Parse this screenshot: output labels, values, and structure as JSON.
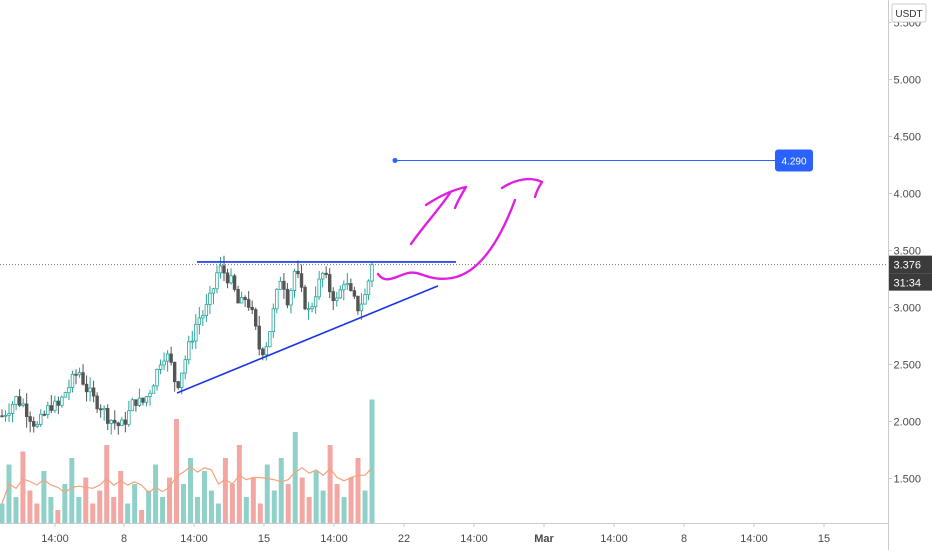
{
  "chart_data": {
    "type": "candlestick",
    "currency": "USDT",
    "y_range": [
      1.15,
      5.65
    ],
    "y_ticks": [
      "1.500",
      "2.000",
      "2.500",
      "3.000",
      "3.500",
      "4.000",
      "4.500",
      "5.000",
      "5.500"
    ],
    "x_ticks": [
      "14:00",
      "8",
      "14:00",
      "15",
      "14:00",
      "22",
      "14:00",
      "Mar",
      "14:00",
      "8",
      "14:00",
      "15"
    ],
    "last_price": "3.376",
    "countdown": "31:34",
    "target_price": 4.29,
    "target_label": "4.290",
    "resistance_level": 3.4,
    "support_trendline": [
      {
        "price": 2.25
      },
      {
        "price": 3.19
      }
    ],
    "price_path": [
      2.05,
      2.12,
      2.2,
      2.15,
      2.05,
      1.95,
      2.05,
      2.15,
      2.12,
      2.25,
      2.35,
      2.45,
      2.3,
      2.2,
      2.15,
      2.05,
      2.0,
      1.95,
      2.05,
      2.2,
      2.15,
      2.25,
      2.4,
      2.6,
      2.55,
      2.3,
      2.5,
      2.7,
      2.9,
      2.95,
      3.1,
      3.35,
      3.3,
      3.2,
      3.0,
      3.1,
      2.9,
      2.6,
      2.7,
      3.0,
      3.3,
      3.05,
      3.35,
      3.1,
      2.95,
      3.15,
      3.3,
      3.15,
      3.05,
      3.25,
      3.1,
      3.0,
      3.1,
      3.376
    ],
    "volume_path": [
      0.15,
      0.45,
      0.2,
      0.55,
      0.25,
      0.15,
      0.4,
      0.2,
      0.1,
      0.3,
      0.5,
      0.2,
      0.35,
      0.15,
      0.25,
      0.6,
      0.2,
      0.4,
      0.15,
      0.3,
      0.1,
      0.25,
      0.45,
      0.2,
      0.35,
      0.8,
      0.3,
      0.5,
      0.2,
      0.4,
      0.25,
      0.15,
      0.5,
      0.3,
      0.6,
      0.2,
      0.35,
      0.15,
      0.45,
      0.25,
      0.5,
      0.3,
      0.7,
      0.35,
      0.2,
      0.4,
      0.25,
      0.6,
      0.3,
      0.2,
      0.35,
      0.5,
      0.25,
      0.95
    ],
    "colors": {
      "up": "#26a69a",
      "down": "#555555",
      "volume_up": "#8fd1c8",
      "volume_down": "#f2a7a3",
      "volume_ma": "#f5a27a",
      "trendlines": "#1a35e8",
      "annotation": "#e020e0",
      "target": "#2962ff",
      "price_tag": "#3b3b3b"
    }
  }
}
